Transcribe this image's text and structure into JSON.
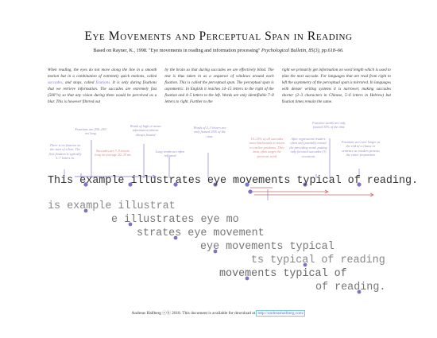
{
  "title": "Eye Movements and Perceptual Span in Reading",
  "subtitle_prefix": "Based on Rayner, K., 1998. \"Eye movements in reading and information processing\"",
  "subtitle_journal": "Psychological Bulletin, 85(3), pp.618–66.",
  "columns": [
    "When reading, the eyes do not move along the line in a smooth motion but in a combination of extremely quick motions, called saccades, and stops, called fixations. It is only during fixations that we retrieve information. The saccades are extremely fast (500°/s) so that any vision during them would be perceived as a blur. This is however filtered out",
    "by the brain so that during saccades we are effectively blind. The text is thus taken in as a sequence of windows around each fixation. This is called the perceptual span. The perceptual span is asymmetric. In English it reaches 14–15 letters to the right of the fixation and 4–5 letters to the left. Words are only identifiable 7–8 letters to right. Further to the",
    "right we primarily get information on word length which is used to plan the next saccade. For languages that are read from right to left the asymmetry of the perceptual span is mirrored. In languages with denser writing systems it is narrower, making saccades shorter (2–3 characters in Chinese, 5–6 letters in Hebrew) but fixation times remain the same."
  ],
  "notes": [
    "There is no fixation on the start of a line. The first fixation is typically 5–7 letters in.",
    "Fixations are 200–250 ms long",
    "Saccades are 7–9 letters long on average 20–35 ms",
    "Words of high or mean information almost always fixated",
    "Long words are often refixated",
    "Words of 2–3 letters are only fixated 25% of the time",
    "10–15% of all saccades move backwards to return to earlier positions. They most often target the previous word",
    "After regressions readers often only partially reread the preceding word, putting only forward saccades (3) occasions",
    "Function words are only fixated 35% of the time",
    "Fixations are even longer at the end of a clause or sentence as readers process the entire proposition"
  ],
  "main_sentence": "This example illustrates eye movements typical of reading.",
  "span_rows": [
    "is example illustrat",
    "e illustrates eye mo",
    "strates eye movement",
    "eye movements typical",
    "ts typical of reading",
    "movements typical of",
    "of reading."
  ],
  "footer_text": "Andreas Hallberg ⓒⓑ 2018. This document is available for download at",
  "footer_link": "http://andreashallberg.com/",
  "colors": {
    "fixation": "#7a74c9",
    "regression": "#c86a6a",
    "note_blue": "#9a8ac7",
    "note_red": "#d78a8a"
  }
}
